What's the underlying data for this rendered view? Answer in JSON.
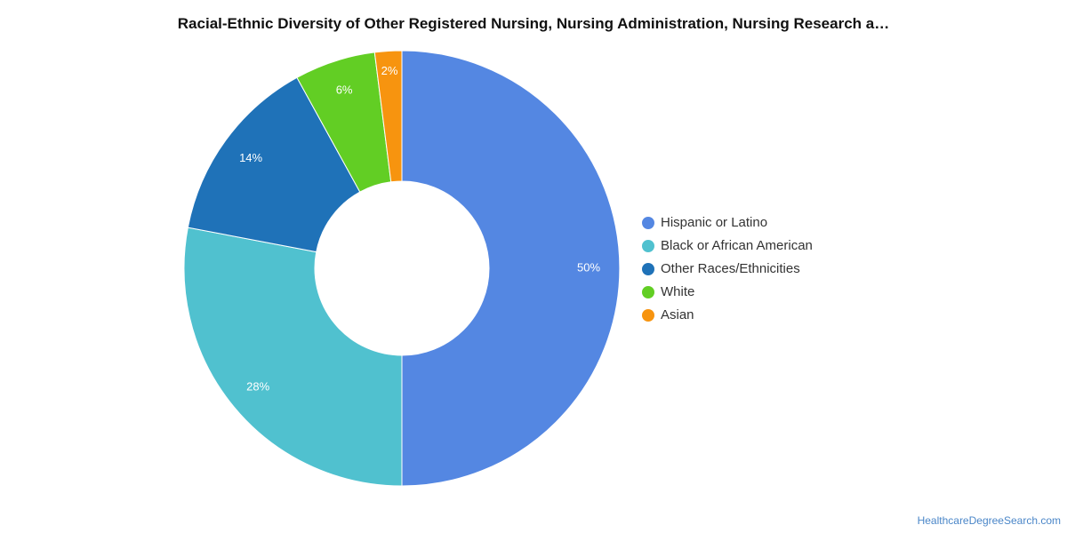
{
  "chart_data": {
    "type": "pie",
    "donut": true,
    "title": "Racial-Ethnic Diversity of Other Registered Nursing, Nursing Administration, Nursing Research a…",
    "categories": [
      "Hispanic or Latino",
      "Black or African American",
      "Other Races/Ethnicities",
      "White",
      "Asian"
    ],
    "values": [
      50,
      28,
      14,
      6,
      2
    ],
    "labels": [
      "50%",
      "28%",
      "14%",
      "6%",
      "2%"
    ],
    "colors": [
      "#5487e2",
      "#50c1cf",
      "#1f72b8",
      "#62ce24",
      "#f7940f"
    ],
    "legend_position": "right"
  },
  "watermark": "HealthcareDegreeSearch.com"
}
